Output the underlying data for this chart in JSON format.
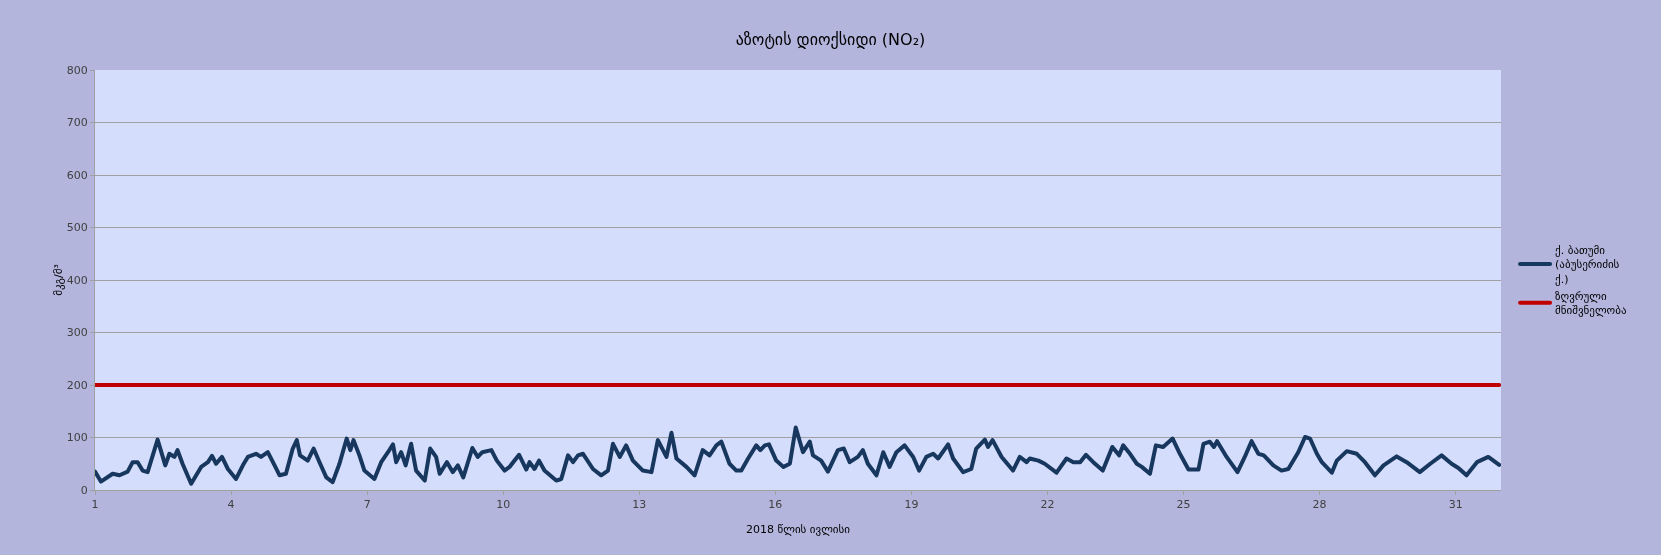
{
  "chart_data": {
    "type": "line",
    "title": "აზოტის დიოქსიდი (NO₂)",
    "xlabel": "2018 წლის ივლისი",
    "ylabel": "მკგ/მ³",
    "xlim": [
      1,
      32
    ],
    "xticks": [
      1,
      4,
      7,
      10,
      13,
      16,
      19,
      22,
      25,
      28,
      31
    ],
    "ylim": [
      0,
      800
    ],
    "yticks": [
      0,
      100,
      200,
      300,
      400,
      500,
      600,
      700,
      800
    ],
    "grid": "y",
    "legend": "right",
    "marker": "none",
    "line_style": "solid",
    "series": [
      {
        "name": "ქ. ბათუმი (აბუსერიძის ქ.)",
        "color": "#17375e",
        "x": [
          1.0,
          1.13,
          1.39,
          1.54,
          1.72,
          1.83,
          1.94,
          2.05,
          2.16,
          2.38,
          2.55,
          2.64,
          2.75,
          2.82,
          2.93,
          3.12,
          3.34,
          3.49,
          3.58,
          3.67,
          3.8,
          3.93,
          4.11,
          4.26,
          4.37,
          4.55,
          4.66,
          4.81,
          4.96,
          5.07,
          5.21,
          5.36,
          5.45,
          5.52,
          5.69,
          5.82,
          5.95,
          6.1,
          6.24,
          6.39,
          6.55,
          6.63,
          6.7,
          6.83,
          6.94,
          7.16,
          7.31,
          7.46,
          7.57,
          7.64,
          7.75,
          7.85,
          7.97,
          8.08,
          8.27,
          8.39,
          8.52,
          8.6,
          8.76,
          8.89,
          9.0,
          9.12,
          9.32,
          9.44,
          9.54,
          9.74,
          9.86,
          10.03,
          10.14,
          10.35,
          10.51,
          10.58,
          10.69,
          10.79,
          10.91,
          11.17,
          11.28,
          11.43,
          11.54,
          11.65,
          11.76,
          11.98,
          12.16,
          12.31,
          12.42,
          12.57,
          12.71,
          12.86,
          13.08,
          13.27,
          13.41,
          13.6,
          13.71,
          13.82,
          14.04,
          14.22,
          14.4,
          14.55,
          14.7,
          14.81,
          14.99,
          15.14,
          15.25,
          15.4,
          15.58,
          15.67,
          15.77,
          15.86,
          16.02,
          16.18,
          16.32,
          16.45,
          16.61,
          16.76,
          16.83,
          17.01,
          17.16,
          17.38,
          17.51,
          17.64,
          17.82,
          17.93,
          18.04,
          18.23,
          18.38,
          18.52,
          18.67,
          18.85,
          19.04,
          19.17,
          19.33,
          19.48,
          19.59,
          19.81,
          19.92,
          20.14,
          20.32,
          20.43,
          20.62,
          20.69,
          20.79,
          20.99,
          21.24,
          21.39,
          21.54,
          21.61,
          21.8,
          21.94,
          22.2,
          22.42,
          22.57,
          22.72,
          22.85,
          23.01,
          23.22,
          23.43,
          23.58,
          23.67,
          23.82,
          23.97,
          24.08,
          24.26,
          24.39,
          24.55,
          24.76,
          24.92,
          25.11,
          25.33,
          25.44,
          25.58,
          25.67,
          25.74,
          25.95,
          26.19,
          26.35,
          26.5,
          26.65,
          26.77,
          26.98,
          27.16,
          27.31,
          27.53,
          27.68,
          27.79,
          27.94,
          28.05,
          28.27,
          28.38,
          28.6,
          28.82,
          29.0,
          29.22,
          29.41,
          29.7,
          29.92,
          30.21,
          30.44,
          30.69,
          30.91,
          31.06,
          31.24,
          31.47,
          31.72,
          31.96
        ],
        "values": [
          35,
          16,
          31,
          28,
          35,
          53,
          53,
          37,
          34,
          96,
          47,
          69,
          63,
          76,
          50,
          12,
          44,
          53,
          65,
          50,
          63,
          40,
          21,
          47,
          63,
          69,
          63,
          72,
          47,
          28,
          31,
          79,
          95,
          66,
          56,
          79,
          53,
          24,
          15,
          50,
          98,
          76,
          95,
          66,
          37,
          21,
          53,
          72,
          87,
          53,
          72,
          47,
          88,
          37,
          18,
          79,
          63,
          31,
          53,
          34,
          47,
          24,
          80,
          63,
          72,
          76,
          56,
          37,
          44,
          67,
          39,
          53,
          40,
          56,
          37,
          18,
          21,
          66,
          53,
          66,
          69,
          40,
          28,
          37,
          88,
          63,
          85,
          56,
          37,
          34,
          95,
          63,
          109,
          60,
          44,
          28,
          76,
          66,
          85,
          92,
          50,
          37,
          37,
          60,
          85,
          76,
          85,
          87,
          56,
          44,
          50,
          119,
          72,
          92,
          66,
          56,
          35,
          76,
          79,
          53,
          63,
          76,
          50,
          28,
          72,
          44,
          72,
          85,
          63,
          37,
          63,
          69,
          60,
          87,
          60,
          34,
          40,
          79,
          96,
          82,
          95,
          63,
          37,
          63,
          53,
          60,
          56,
          50,
          33,
          60,
          53,
          53,
          67,
          53,
          37,
          82,
          66,
          85,
          69,
          50,
          44,
          31,
          85,
          82,
          98,
          69,
          39,
          39,
          88,
          92,
          82,
          93,
          63,
          34,
          63,
          93,
          69,
          66,
          47,
          37,
          40,
          72,
          101,
          98,
          69,
          53,
          33,
          56,
          74,
          69,
          53,
          28,
          47,
          64,
          53,
          34,
          50,
          66,
          50,
          42,
          28,
          53,
          63,
          48
        ]
      },
      {
        "name": "ზღვრული მნიშვნელობა",
        "color": "#c00000",
        "x": [
          1,
          31.96
        ],
        "values": [
          200,
          200
        ]
      }
    ]
  }
}
